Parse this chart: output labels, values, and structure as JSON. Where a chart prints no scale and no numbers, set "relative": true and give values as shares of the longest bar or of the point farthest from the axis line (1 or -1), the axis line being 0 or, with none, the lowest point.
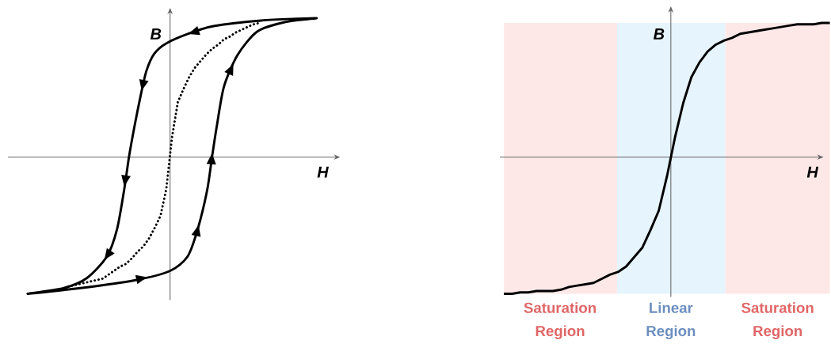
{
  "chart_data": [
    {
      "type": "line",
      "relative": true,
      "xlabel": "H",
      "ylabel": "B",
      "categories": [
        null,
        null,
        null,
        null,
        null,
        null,
        null,
        null,
        null,
        null,
        null,
        null,
        null,
        null,
        null,
        null,
        null,
        null,
        null,
        null,
        null,
        null,
        null,
        null,
        null,
        null,
        null,
        null,
        null,
        null,
        null,
        null,
        null,
        null,
        null,
        null,
        null,
        null,
        null,
        null,
        null,
        null,
        null,
        null,
        null,
        null,
        null,
        null,
        null,
        null,
        null
      ],
      "series": [
        {
          "color": "#000000",
          "line_style": "dotted",
          "values": [
            null,
            null,
            null,
            null,
            null,
            null,
            null,
            -0.97,
            -0.96,
            -0.95,
            -0.94,
            -0.93,
            -0.92,
            -0.91,
            -0.88,
            -0.85,
            -0.82,
            -0.8,
            -0.76,
            -0.71,
            -0.67,
            -0.61,
            -0.53,
            -0.44,
            -0.24,
            0.15,
            0.41,
            0.51,
            0.6,
            0.67,
            0.72,
            0.77,
            0.81,
            0.84,
            0.88,
            0.9,
            0.93,
            0.95,
            0.97,
            0.99,
            1.0,
            null,
            null,
            null,
            null,
            null,
            null,
            null,
            null,
            null,
            null
          ]
        }
      ]
    },
    {
      "type": "line",
      "relative": true,
      "xlabel": "H",
      "ylabel": "B",
      "categories": [
        null,
        null,
        null,
        null,
        null,
        null,
        null,
        null,
        null,
        null,
        null,
        null,
        null,
        null,
        null,
        null,
        null,
        null,
        null,
        null,
        null,
        null,
        null,
        null,
        null,
        null,
        null,
        null,
        null,
        null,
        null,
        null,
        null,
        null,
        null,
        null,
        null,
        null,
        null,
        null,
        null
      ],
      "series": [
        {
          "color": "#000000",
          "line_style": "solid",
          "values": [
            -1.0,
            -1.0,
            -0.99,
            -0.99,
            -0.98,
            -0.98,
            -0.98,
            -0.97,
            -0.95,
            -0.94,
            -0.93,
            -0.92,
            -0.89,
            -0.86,
            -0.84,
            -0.8,
            -0.73,
            -0.66,
            -0.53,
            -0.39,
            -0.14,
            0.15,
            0.4,
            0.59,
            0.7,
            0.78,
            0.83,
            0.86,
            0.88,
            0.91,
            0.92,
            0.93,
            0.94,
            0.95,
            0.96,
            0.97,
            0.98,
            0.98,
            0.98,
            0.99,
            0.99
          ]
        }
      ],
      "annotations": [
        "Saturation Region",
        "Linear Region",
        "Saturation Region"
      ]
    }
  ]
}
